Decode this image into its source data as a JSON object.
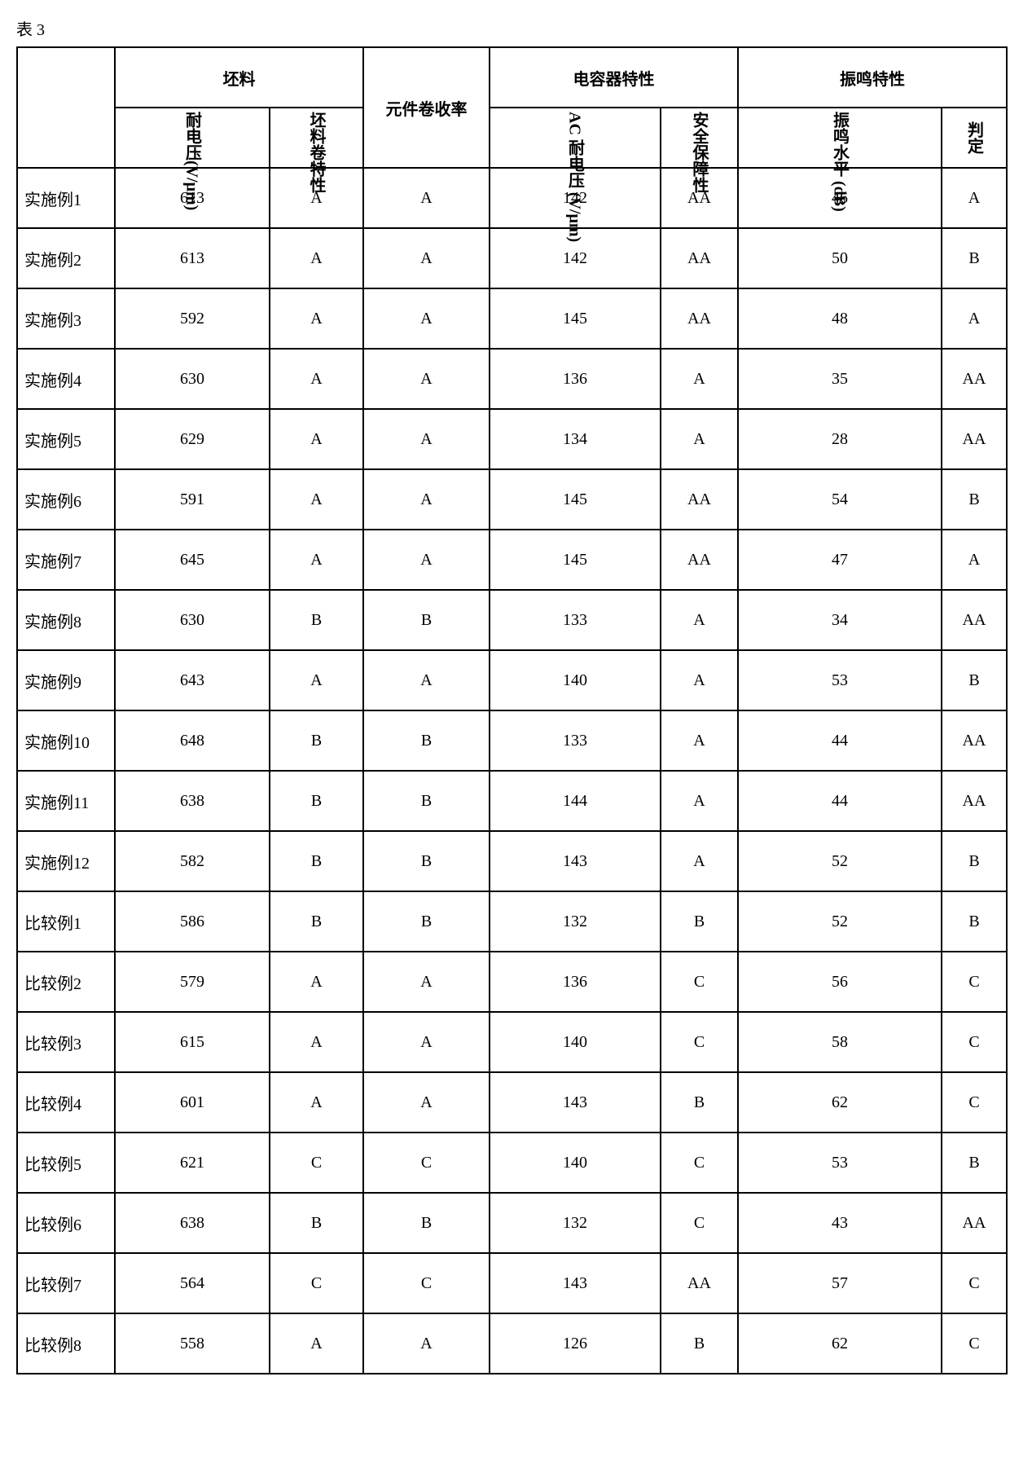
{
  "caption": "表 3",
  "groupHeaders": {
    "blank": "",
    "g1": "坯料",
    "g2": "元件卷收率",
    "g3": "电容器特性",
    "g4": "振鸣特性"
  },
  "subHeaders": {
    "c1": "耐电压(V/μm)",
    "c2": "坯料卷特性",
    "c4": "AC 耐电压 (V/μm)",
    "c5": "安全保障性",
    "c6": "振鸣水平 (dB)",
    "c7": "判定"
  },
  "rows": [
    {
      "label": "实施例1",
      "v1": "613",
      "v2": "A",
      "v3": "A",
      "v4": "142",
      "v5": "AA",
      "v6": "46",
      "v7": "A"
    },
    {
      "label": "实施例2",
      "v1": "613",
      "v2": "A",
      "v3": "A",
      "v4": "142",
      "v5": "AA",
      "v6": "50",
      "v7": "B"
    },
    {
      "label": "实施例3",
      "v1": "592",
      "v2": "A",
      "v3": "A",
      "v4": "145",
      "v5": "AA",
      "v6": "48",
      "v7": "A"
    },
    {
      "label": "实施例4",
      "v1": "630",
      "v2": "A",
      "v3": "A",
      "v4": "136",
      "v5": "A",
      "v6": "35",
      "v7": "AA"
    },
    {
      "label": "实施例5",
      "v1": "629",
      "v2": "A",
      "v3": "A",
      "v4": "134",
      "v5": "A",
      "v6": "28",
      "v7": "AA"
    },
    {
      "label": "实施例6",
      "v1": "591",
      "v2": "A",
      "v3": "A",
      "v4": "145",
      "v5": "AA",
      "v6": "54",
      "v7": "B"
    },
    {
      "label": "实施例7",
      "v1": "645",
      "v2": "A",
      "v3": "A",
      "v4": "145",
      "v5": "AA",
      "v6": "47",
      "v7": "A"
    },
    {
      "label": "实施例8",
      "v1": "630",
      "v2": "B",
      "v3": "B",
      "v4": "133",
      "v5": "A",
      "v6": "34",
      "v7": "AA"
    },
    {
      "label": "实施例9",
      "v1": "643",
      "v2": "A",
      "v3": "A",
      "v4": "140",
      "v5": "A",
      "v6": "53",
      "v7": "B"
    },
    {
      "label": "实施例10",
      "v1": "648",
      "v2": "B",
      "v3": "B",
      "v4": "133",
      "v5": "A",
      "v6": "44",
      "v7": "AA"
    },
    {
      "label": "实施例11",
      "v1": "638",
      "v2": "B",
      "v3": "B",
      "v4": "144",
      "v5": "A",
      "v6": "44",
      "v7": "AA"
    },
    {
      "label": "实施例12",
      "v1": "582",
      "v2": "B",
      "v3": "B",
      "v4": "143",
      "v5": "A",
      "v6": "52",
      "v7": "B"
    },
    {
      "label": "比较例1",
      "v1": "586",
      "v2": "B",
      "v3": "B",
      "v4": "132",
      "v5": "B",
      "v6": "52",
      "v7": "B"
    },
    {
      "label": "比较例2",
      "v1": "579",
      "v2": "A",
      "v3": "A",
      "v4": "136",
      "v5": "C",
      "v6": "56",
      "v7": "C"
    },
    {
      "label": "比较例3",
      "v1": "615",
      "v2": "A",
      "v3": "A",
      "v4": "140",
      "v5": "C",
      "v6": "58",
      "v7": "C"
    },
    {
      "label": "比较例4",
      "v1": "601",
      "v2": "A",
      "v3": "A",
      "v4": "143",
      "v5": "B",
      "v6": "62",
      "v7": "C"
    },
    {
      "label": "比较例5",
      "v1": "621",
      "v2": "C",
      "v3": "C",
      "v4": "140",
      "v5": "C",
      "v6": "53",
      "v7": "B"
    },
    {
      "label": "比较例6",
      "v1": "638",
      "v2": "B",
      "v3": "B",
      "v4": "132",
      "v5": "C",
      "v6": "43",
      "v7": "AA"
    },
    {
      "label": "比较例7",
      "v1": "564",
      "v2": "C",
      "v3": "C",
      "v4": "143",
      "v5": "AA",
      "v6": "57",
      "v7": "C"
    },
    {
      "label": "比较例8",
      "v1": "558",
      "v2": "A",
      "v3": "A",
      "v4": "126",
      "v5": "B",
      "v6": "62",
      "v7": "C"
    }
  ]
}
